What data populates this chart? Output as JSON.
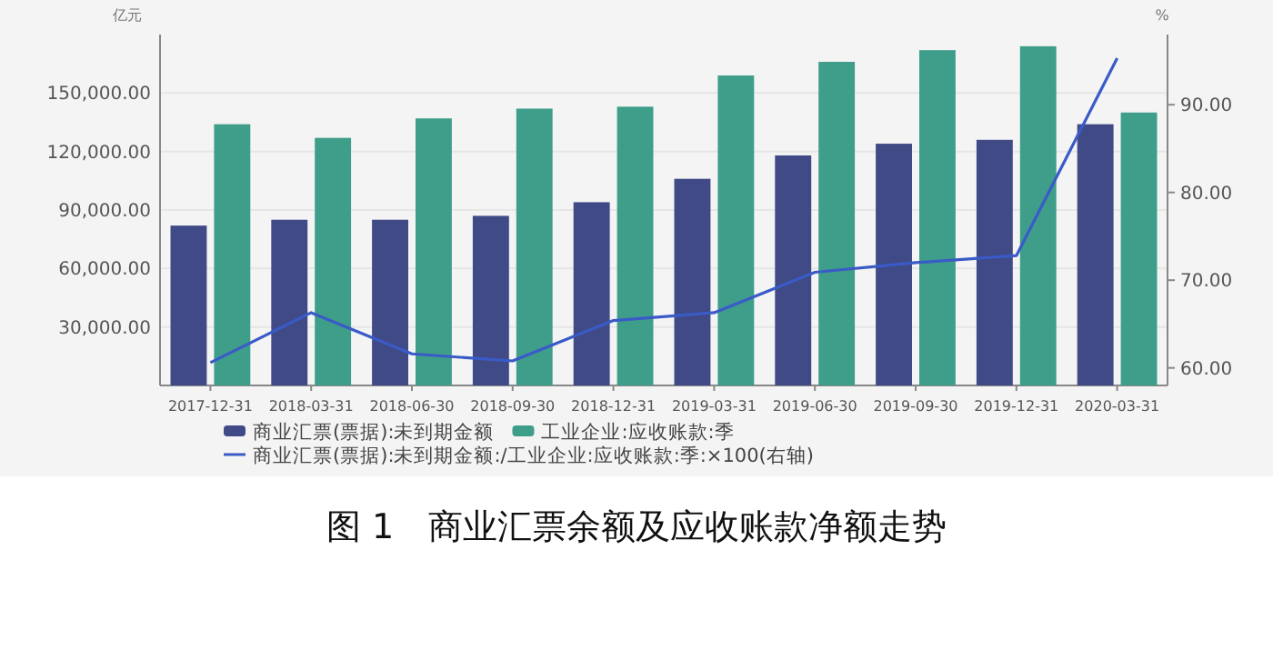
{
  "chart_data": {
    "type": "bar",
    "title": "图 1　商业汇票余额及应收账款净额走势",
    "ylabel": "亿元",
    "y2label": "%",
    "categories": [
      "2017-12-31",
      "2018-03-31",
      "2018-06-30",
      "2018-09-30",
      "2018-12-31",
      "2019-03-31",
      "2019-06-30",
      "2019-09-30",
      "2019-12-31",
      "2020-03-31"
    ],
    "series": [
      {
        "name": "商业汇票(票据):未到期金额",
        "color": "#3f4a86",
        "values": [
          82000,
          85000,
          85000,
          87000,
          94000,
          106000,
          118000,
          124000,
          126000,
          134000
        ]
      },
      {
        "name": "工业企业:应收账款:季",
        "color": "#3f9e8a",
        "values": [
          134000,
          127000,
          137000,
          142000,
          143000,
          159000,
          166000,
          172000,
          174000,
          140000
        ]
      },
      {
        "name": "商业汇票(票据):未到期金额:/工业企业:应收账款:季:×100(右轴)",
        "type": "line",
        "axis": "y2",
        "color": "#3a5bc7",
        "values": [
          60.6,
          66.3,
          61.6,
          60.8,
          65.4,
          66.3,
          70.9,
          72.0,
          72.8,
          95.3
        ]
      }
    ],
    "ylim": [
      0,
      180000
    ],
    "yticks": [
      {
        "value": 30000,
        "label": "30,000.00"
      },
      {
        "value": 60000,
        "label": "60,000.00"
      },
      {
        "value": 90000,
        "label": "90,000.00"
      },
      {
        "value": 120000,
        "label": "120,000.00"
      },
      {
        "value": 150000,
        "label": "150,000.00"
      }
    ],
    "y2lim": [
      58,
      98
    ],
    "y2ticks": [
      {
        "value": 60,
        "label": "60.00"
      },
      {
        "value": 70,
        "label": "70.00"
      },
      {
        "value": 80,
        "label": "80.00"
      },
      {
        "value": 90,
        "label": "90.00"
      }
    ],
    "grid": "y",
    "legend": "bottom"
  }
}
